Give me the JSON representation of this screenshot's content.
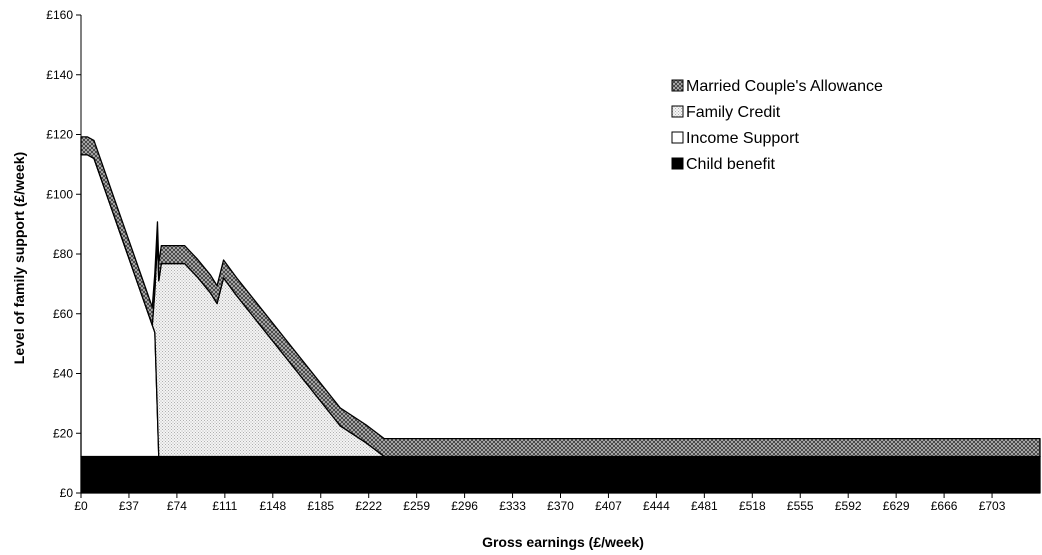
{
  "chart_data": {
    "type": "area",
    "stacked": true,
    "xlabel": "Gross earnings (£/week)",
    "ylabel": "Level of family support (£/week)",
    "xlim": [
      0,
      740
    ],
    "ylim": [
      0,
      160
    ],
    "x_ticks": [
      0,
      37,
      74,
      111,
      148,
      185,
      222,
      259,
      296,
      333,
      370,
      407,
      444,
      481,
      518,
      555,
      592,
      629,
      666,
      703
    ],
    "x_tick_labels": [
      "£0",
      "£37",
      "£74",
      "£111",
      "£148",
      "£185",
      "£222",
      "£259",
      "£296",
      "£333",
      "£370",
      "£407",
      "£444",
      "£481",
      "£518",
      "£555",
      "£592",
      "£629",
      "£666",
      "£703"
    ],
    "y_ticks": [
      0,
      20,
      40,
      60,
      80,
      100,
      120,
      140,
      160
    ],
    "y_tick_labels": [
      "£0",
      "£20",
      "£40",
      "£60",
      "£80",
      "£100",
      "£120",
      "£140",
      "£160"
    ],
    "grid": false,
    "legend_position": "top-right",
    "series": [
      {
        "name": "Child benefit",
        "color": "#000000",
        "pattern": "solid",
        "x": [
          0,
          740
        ],
        "values": [
          12.2,
          12.2
        ]
      },
      {
        "name": "Income Support",
        "color": "#ffffff",
        "pattern": "none",
        "x": [
          0,
          5,
          10,
          15,
          20,
          25,
          30,
          35,
          40,
          45,
          50,
          55,
          57,
          60,
          740
        ],
        "values": [
          101,
          101,
          99.8,
          93.6,
          87.4,
          81.2,
          75.0,
          68.8,
          62.6,
          56.4,
          50.2,
          44.0,
          41.5,
          0,
          0
        ]
      },
      {
        "name": "Family Credit",
        "color": "#e0e0e0",
        "pattern": "dots",
        "x": [
          0,
          55,
          57,
          59,
          60,
          62,
          80,
          90,
          100,
          105,
          110,
          120,
          140,
          160,
          180,
          200,
          220,
          234,
          740
        ],
        "values": [
          0,
          0,
          14.0,
          58.7,
          58.8,
          64.6,
          64.6,
          60.0,
          54.7,
          51.2,
          59.8,
          53.9,
          43.0,
          32.1,
          21.2,
          10.3,
          4.6,
          0,
          0
        ]
      },
      {
        "name": "Married Couple's Allowance",
        "color": "#999999",
        "pattern": "crosshatch",
        "x": [
          0,
          740
        ],
        "values": [
          6.0,
          6.0
        ]
      }
    ]
  }
}
